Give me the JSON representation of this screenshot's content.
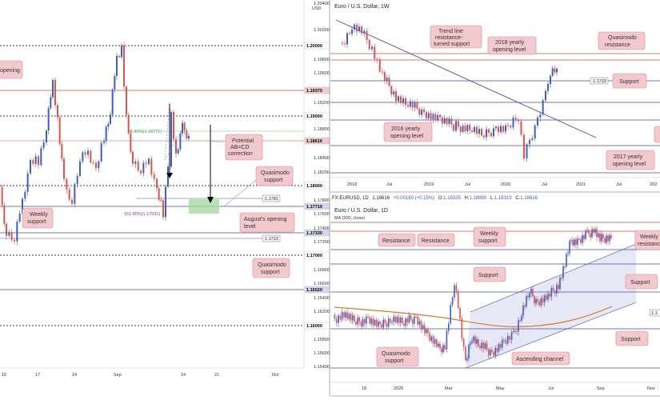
{
  "colors": {
    "up": "#3a5fcd",
    "down": "#e0524a",
    "resistance_line": "#c0504d",
    "support_line": "#4a4aa8",
    "callout_fill": "#f2c9cc",
    "callout_stroke": "#d98a91",
    "channel_fill": "#e0e3f2",
    "ma": "#d97b28",
    "green_zone": "#a8d9a0"
  },
  "left": {
    "top_label": "1.20400",
    "currency": "USD",
    "price_ticks": [
      "1.20400",
      "1.20200",
      "1.19800",
      "1.19600",
      "1.19200",
      "1.19000",
      "1.18800",
      "1.18400",
      "1.18200",
      "1.18000",
      "1.17800",
      "1.17600",
      "1.17400",
      "1.17200",
      "1.16800",
      "1.16600",
      "1.16400",
      "1.16200",
      "1.15800",
      "1.15600",
      "1.15400"
    ],
    "level_tags": [
      {
        "label": "1.20000",
        "kind": "dash"
      },
      {
        "label": "1.19370",
        "kind": "res"
      },
      {
        "label": "1.19000",
        "kind": "dash"
      },
      {
        "label": "1.18616",
        "kind": "res"
      },
      {
        "label": "1.18000",
        "kind": "dash"
      },
      {
        "label": "1.17710",
        "kind": "sup"
      },
      {
        "label": "1.17330",
        "kind": "sup"
      },
      {
        "label": "1.17000",
        "kind": "dash"
      },
      {
        "label": "1.16520",
        "kind": "sup"
      },
      {
        "label": "1.16000",
        "kind": "dash"
      }
    ],
    "inner_tags": [
      {
        "label": "1.1781"
      },
      {
        "label": "1.1723"
      }
    ],
    "fib_labels": {
      "upper": "61.80%(1.18771)",
      "lower": "161.80%(1.17591)"
    },
    "x_labels": [
      "10",
      "17",
      "24",
      "Sep",
      "14",
      "21",
      "Oct"
    ],
    "callouts": {
      "opening": "opening",
      "weekly_support": [
        "Weekly",
        "support"
      ],
      "abcd": [
        "Potential",
        "AB=CD",
        "correction"
      ],
      "qm_support_upper": [
        "Quasimodo",
        "support"
      ],
      "august_open": [
        "August's opening",
        "level"
      ],
      "qm_support_lower": [
        "Quasimodo",
        "support"
      ]
    }
  },
  "top_right": {
    "title": "Euro / U.S. Dollar, 1W",
    "x_labels": [
      "2018",
      "Jul",
      "2019",
      "Jul",
      "2020",
      "Jul",
      "2021",
      "Jul",
      "202"
    ],
    "price_tag": "1.1733",
    "callouts": {
      "trend": [
        "Trend line",
        "resistance-",
        "turned support"
      ],
      "yearly_2018": [
        "2018 yearly",
        "opening level"
      ],
      "qm_res": [
        "Quasimodo",
        "resistance"
      ],
      "support": "Support",
      "yearly_2016": [
        "2016 yearly",
        "opening level"
      ],
      "yearly_2017": [
        "2017 yearly",
        "opening level"
      ]
    }
  },
  "bottom_right": {
    "header": {
      "symbol": "FX:EURUSD, 1D",
      "price": "1.18616",
      "change": "+0.00180 (+0.15%)",
      "o_label": "O:",
      "o": "1.18335",
      "h_label": "H:",
      "h": "1.18880",
      "l_label": "L:",
      "l": "1.18319",
      "c_label": "C:",
      "c": "1.18616"
    },
    "subtitle": "Euro / U.S. Dollar, 1D",
    "ma_label": "MA (200, close)",
    "price_tag": "1.1",
    "x_labels": [
      "18",
      "2020",
      "Mar",
      "May",
      "Jul",
      "Sep",
      "Nov"
    ],
    "callouts": {
      "res1": "Resistance",
      "res2": "Resistance",
      "weekly_support": [
        "Weekly",
        "support"
      ],
      "weekly_res": [
        "Weekly",
        "resistance"
      ],
      "support1": "Support",
      "support2": "Support",
      "support3": "Support",
      "qm_support": [
        "Quasimodo",
        "support"
      ],
      "channel": "Ascending channel"
    }
  }
}
